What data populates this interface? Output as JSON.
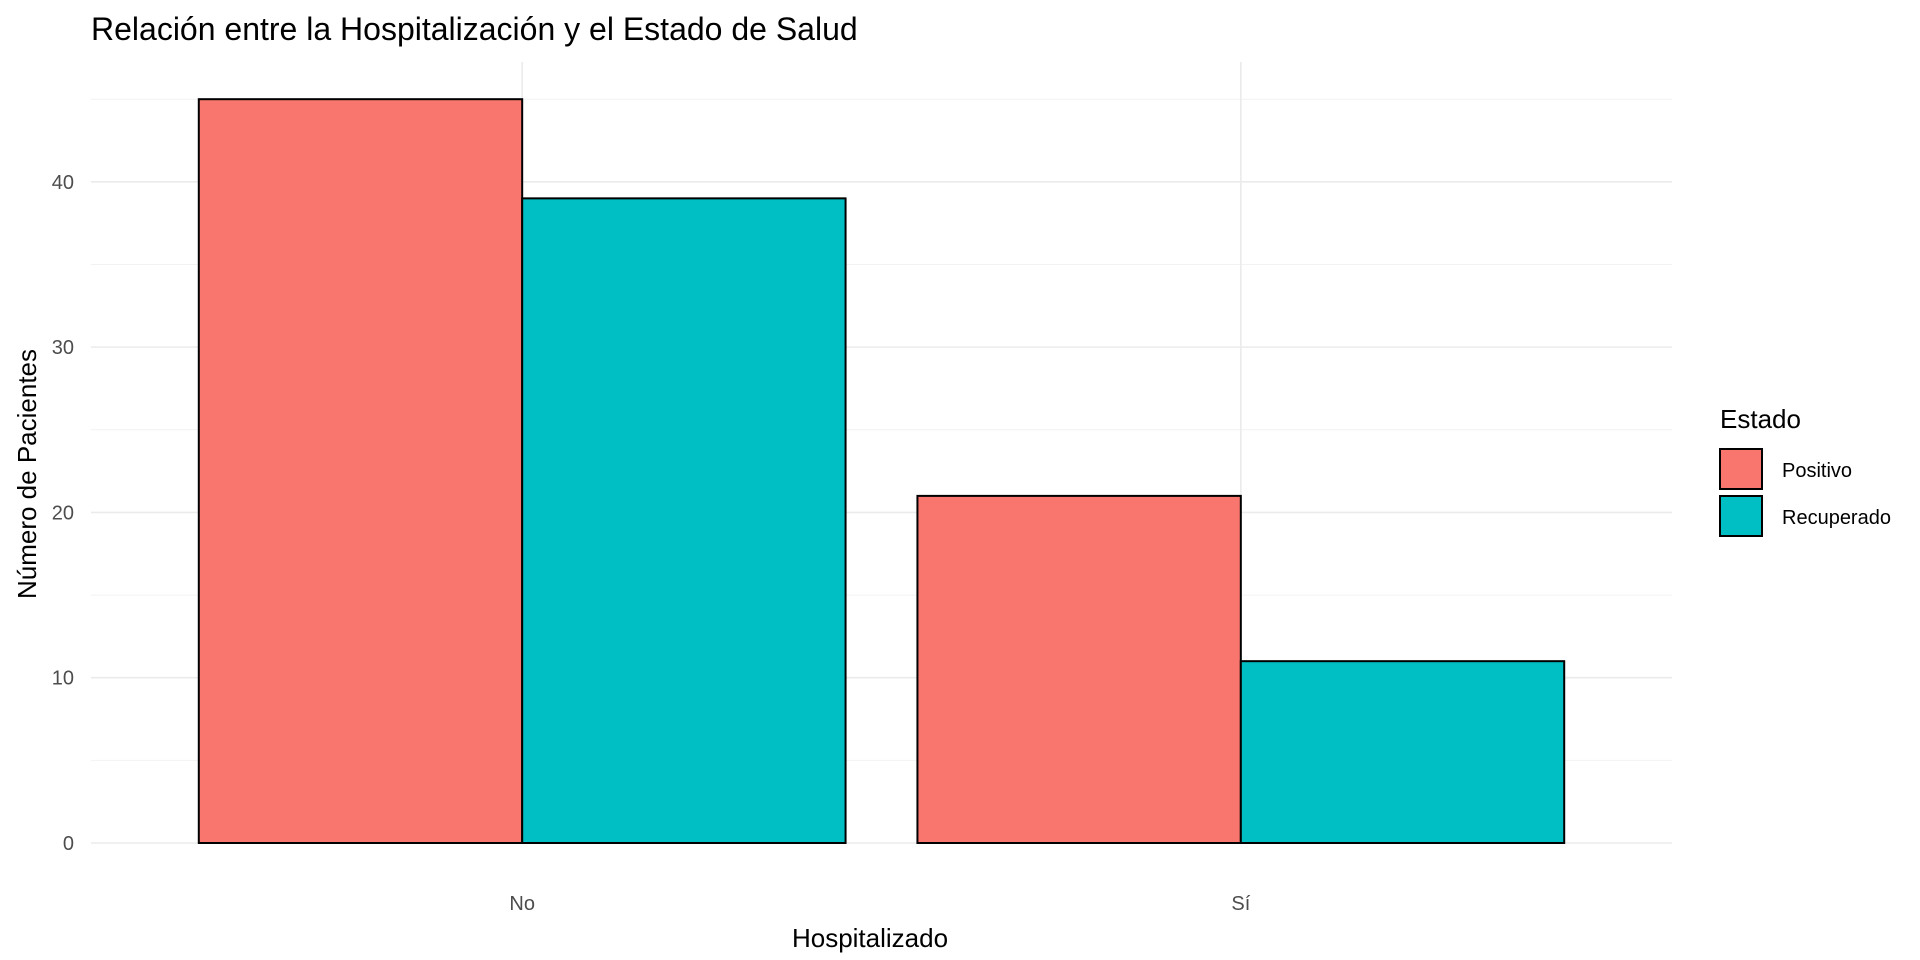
{
  "chart_data": {
    "type": "bar",
    "title": "Relación entre la Hospitalización y el Estado de Salud",
    "xlabel": "Hospitalizado",
    "ylabel": "Número de Pacientes",
    "categories": [
      "No",
      "Sí"
    ],
    "series": [
      {
        "name": "Positivo",
        "values": [
          45,
          21
        ],
        "color": "#F8766D"
      },
      {
        "name": "Recuperado",
        "values": [
          39,
          11
        ],
        "color": "#00BFC4"
      }
    ],
    "ylim": [
      0,
      47.25
    ],
    "yticks": [
      0,
      10,
      20,
      30,
      40
    ],
    "grid": true,
    "legend": {
      "title": "Estado",
      "position": "right"
    }
  }
}
